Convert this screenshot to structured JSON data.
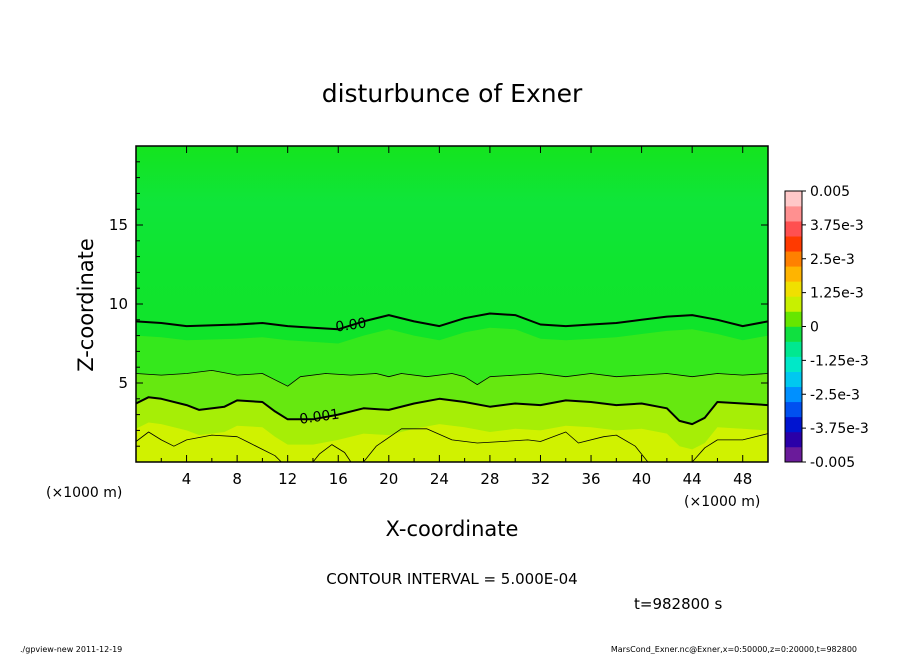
{
  "chart_data": {
    "type": "heatmap",
    "title": "disturbunce of Exner",
    "xlabel": "X-coordinate",
    "ylabel": "Z-coordinate",
    "x_unit_left": "(×1000 m)",
    "x_unit_right": "(×1000 m)",
    "xlim": [
      0,
      50
    ],
    "ylim": [
      0,
      20
    ],
    "xticks": [
      4,
      8,
      12,
      16,
      20,
      24,
      28,
      32,
      36,
      40,
      44,
      48
    ],
    "yticks": [
      5,
      10,
      15
    ],
    "colorbar": {
      "vmin": -0.005,
      "vmax": 0.005,
      "labels": [
        "0.005",
        "3.75e-3",
        "2.5e-3",
        "1.25e-3",
        "0",
        "-1.25e-3",
        "-2.5e-3",
        "-3.75e-3",
        "-0.005"
      ],
      "label_values": [
        0.005,
        0.00375,
        0.0025,
        0.00125,
        0,
        -0.00125,
        -0.0025,
        -0.00375,
        -0.005
      ],
      "colors": [
        "#6a1b9a",
        "#2a00a8",
        "#0014d0",
        "#0050f0",
        "#0090ff",
        "#00c8f0",
        "#00e8c8",
        "#00e890",
        "#10e040",
        "#66e600",
        "#c8f000",
        "#f0e000",
        "#ffb400",
        "#ff8000",
        "#ff3a00",
        "#ff5050",
        "#ff9090",
        "#ffc8c8"
      ]
    },
    "bands": [
      {
        "level": 0.0,
        "color": "#0fe42a"
      },
      {
        "level": 0.0005,
        "color": "#35e81c"
      },
      {
        "level": 0.001,
        "color": "#66e810"
      },
      {
        "level": 0.0015,
        "color": "#a6ee06"
      },
      {
        "level": 0.002,
        "color": "#d0f200"
      }
    ],
    "contours": [
      {
        "label": "0.00",
        "label_x": 17,
        "label_z": 8.7,
        "points": [
          [
            0,
            8.9
          ],
          [
            2,
            8.8
          ],
          [
            4,
            8.6
          ],
          [
            8,
            8.7
          ],
          [
            10,
            8.8
          ],
          [
            12,
            8.6
          ],
          [
            14,
            8.5
          ],
          [
            16,
            8.4
          ],
          [
            18,
            8.9
          ],
          [
            20,
            9.3
          ],
          [
            22,
            8.9
          ],
          [
            24,
            8.6
          ],
          [
            26,
            9.1
          ],
          [
            28,
            9.4
          ],
          [
            30,
            9.3
          ],
          [
            32,
            8.7
          ],
          [
            34,
            8.6
          ],
          [
            36,
            8.7
          ],
          [
            38,
            8.8
          ],
          [
            40,
            9.0
          ],
          [
            42,
            9.2
          ],
          [
            44,
            9.3
          ],
          [
            46,
            9.0
          ],
          [
            48,
            8.6
          ],
          [
            50,
            8.9
          ]
        ]
      },
      {
        "label": "",
        "points": [
          [
            0,
            5.6
          ],
          [
            2,
            5.5
          ],
          [
            4,
            5.6
          ],
          [
            6,
            5.8
          ],
          [
            8,
            5.5
          ],
          [
            10,
            5.6
          ],
          [
            11,
            5.2
          ],
          [
            12,
            4.8
          ],
          [
            13,
            5.4
          ],
          [
            15,
            5.6
          ],
          [
            17,
            5.5
          ],
          [
            19,
            5.6
          ],
          [
            20,
            5.4
          ],
          [
            21,
            5.6
          ],
          [
            23,
            5.4
          ],
          [
            25,
            5.6
          ],
          [
            26,
            5.4
          ],
          [
            27,
            4.9
          ],
          [
            28,
            5.4
          ],
          [
            30,
            5.5
          ],
          [
            32,
            5.6
          ],
          [
            34,
            5.4
          ],
          [
            36,
            5.6
          ],
          [
            38,
            5.4
          ],
          [
            40,
            5.5
          ],
          [
            42,
            5.6
          ],
          [
            44,
            5.4
          ],
          [
            46,
            5.6
          ],
          [
            48,
            5.5
          ],
          [
            50,
            5.6
          ]
        ]
      },
      {
        "label": "0.001",
        "label_x": 14.5,
        "label_z": 2.9,
        "points": [
          [
            0,
            3.7
          ],
          [
            1,
            4.1
          ],
          [
            2,
            4.0
          ],
          [
            4,
            3.6
          ],
          [
            5,
            3.3
          ],
          [
            7,
            3.5
          ],
          [
            8,
            3.9
          ],
          [
            10,
            3.8
          ],
          [
            11,
            3.2
          ],
          [
            12,
            2.7
          ],
          [
            14,
            2.7
          ],
          [
            16,
            3.0
          ],
          [
            18,
            3.4
          ],
          [
            20,
            3.3
          ],
          [
            22,
            3.7
          ],
          [
            24,
            4.0
          ],
          [
            26,
            3.8
          ],
          [
            28,
            3.5
          ],
          [
            30,
            3.7
          ],
          [
            32,
            3.6
          ],
          [
            34,
            3.9
          ],
          [
            36,
            3.8
          ],
          [
            38,
            3.6
          ],
          [
            40,
            3.7
          ],
          [
            42,
            3.4
          ],
          [
            43,
            2.6
          ],
          [
            44,
            2.4
          ],
          [
            45,
            2.8
          ],
          [
            46,
            3.8
          ],
          [
            48,
            3.7
          ],
          [
            50,
            3.6
          ]
        ]
      },
      {
        "label": "",
        "points": [
          [
            0,
            1.3
          ],
          [
            1,
            1.9
          ],
          [
            2,
            1.4
          ],
          [
            3,
            1.0
          ],
          [
            4,
            1.4
          ],
          [
            6,
            1.7
          ],
          [
            8,
            1.6
          ],
          [
            9,
            1.2
          ],
          [
            10,
            0.8
          ],
          [
            11,
            0.4
          ],
          [
            11.5,
            0.0
          ]
        ]
      },
      {
        "label": "",
        "points": [
          [
            14,
            0.0
          ],
          [
            14.5,
            0.5
          ],
          [
            15.5,
            1.1
          ],
          [
            16.5,
            0.6
          ],
          [
            17,
            0.0
          ]
        ]
      },
      {
        "label": "",
        "points": [
          [
            18,
            0.0
          ],
          [
            19,
            1.0
          ],
          [
            21,
            2.1
          ],
          [
            23,
            2.1
          ],
          [
            25,
            1.4
          ],
          [
            27,
            1.2
          ],
          [
            29,
            1.3
          ],
          [
            31,
            1.4
          ],
          [
            32,
            1.3
          ],
          [
            33,
            1.6
          ],
          [
            34,
            1.9
          ],
          [
            35,
            1.2
          ],
          [
            37,
            1.6
          ],
          [
            38,
            1.7
          ],
          [
            39.5,
            1.0
          ],
          [
            40.5,
            0.0
          ]
        ]
      },
      {
        "label": "",
        "points": [
          [
            44,
            0.0
          ],
          [
            45,
            0.9
          ],
          [
            46,
            1.4
          ],
          [
            48,
            1.4
          ],
          [
            50,
            1.8
          ]
        ]
      }
    ]
  },
  "annotations": {
    "contour_interval": "CONTOUR INTERVAL = 5.000E-04",
    "time": "t=982800 s",
    "footer_left": "./gpview-new   2011-12-19",
    "footer_right": "MarsCond_Exner.nc@Exner,x=0:50000,z=0:20000,t=982800"
  }
}
